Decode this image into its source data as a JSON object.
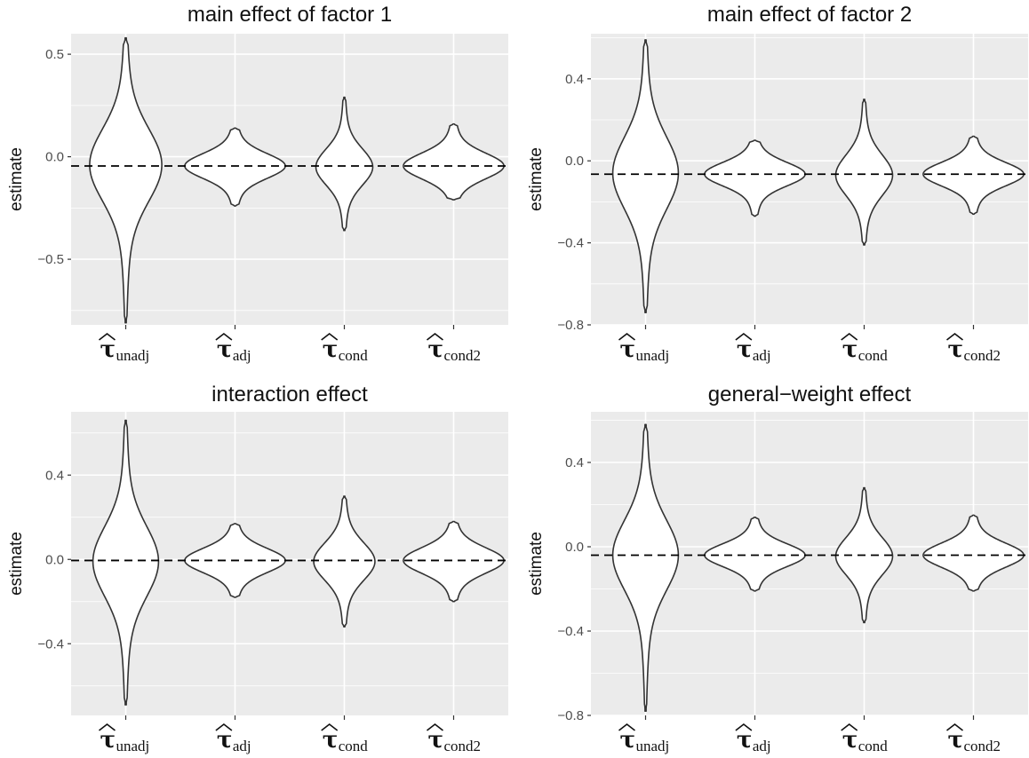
{
  "tick_marker": "−",
  "chart_data": [
    {
      "type": "violin",
      "title": "main effect of factor 1",
      "ylabel": "estimate",
      "xlabel": "",
      "ylim": [
        -0.82,
        0.6
      ],
      "yticks": [
        0.5,
        0.0,
        -0.5
      ],
      "ytick_labels": [
        "0.5",
        "0.0",
        "−0.5"
      ],
      "grid": true,
      "categories": [
        "τ̂_unadj",
        "τ̂_adj",
        "τ̂_cond",
        "τ̂_cond2"
      ],
      "category_parts": [
        {
          "base": "τ",
          "sub": "unadj"
        },
        {
          "base": "τ",
          "sub": "adj"
        },
        {
          "base": "τ",
          "sub": "cond"
        },
        {
          "base": "τ",
          "sub": "cond2"
        }
      ],
      "hline": -0.045,
      "violins": [
        {
          "min": -0.81,
          "max": 0.58,
          "center": -0.04,
          "sd": 0.17,
          "halfwidth": 0.33
        },
        {
          "min": -0.24,
          "max": 0.14,
          "center": -0.045,
          "sd": 0.058,
          "halfwidth": 0.46
        },
        {
          "min": -0.36,
          "max": 0.29,
          "center": -0.05,
          "sd": 0.085,
          "halfwidth": 0.26
        },
        {
          "min": -0.21,
          "max": 0.16,
          "center": -0.045,
          "sd": 0.06,
          "halfwidth": 0.46
        }
      ]
    },
    {
      "type": "violin",
      "title": "main effect of factor 2",
      "ylabel": "estimate",
      "xlabel": "",
      "ylim": [
        -0.8,
        0.62
      ],
      "yticks": [
        0.4,
        0.0,
        -0.4,
        -0.8
      ],
      "ytick_labels": [
        "0.4",
        "0.0",
        "−0.4",
        "−0.8"
      ],
      "grid": true,
      "categories": [
        "τ̂_unadj",
        "τ̂_adj",
        "τ̂_cond",
        "τ̂_cond2"
      ],
      "category_parts": [
        {
          "base": "τ",
          "sub": "unadj"
        },
        {
          "base": "τ",
          "sub": "adj"
        },
        {
          "base": "τ",
          "sub": "cond"
        },
        {
          "base": "τ",
          "sub": "cond2"
        }
      ],
      "hline": -0.065,
      "violins": [
        {
          "min": -0.74,
          "max": 0.59,
          "center": -0.06,
          "sd": 0.17,
          "halfwidth": 0.3
        },
        {
          "min": -0.27,
          "max": 0.1,
          "center": -0.065,
          "sd": 0.055,
          "halfwidth": 0.46
        },
        {
          "min": -0.41,
          "max": 0.3,
          "center": -0.07,
          "sd": 0.095,
          "halfwidth": 0.26
        },
        {
          "min": -0.26,
          "max": 0.12,
          "center": -0.065,
          "sd": 0.055,
          "halfwidth": 0.46
        }
      ]
    },
    {
      "type": "violin",
      "title": "interaction effect",
      "ylabel": "estimate",
      "xlabel": "",
      "ylim": [
        -0.74,
        0.7
      ],
      "yticks": [
        0.4,
        0.0,
        -0.4
      ],
      "ytick_labels": [
        "0.4",
        "0.0",
        "−0.4"
      ],
      "grid": true,
      "categories": [
        "τ̂_unadj",
        "τ̂_adj",
        "τ̂_cond",
        "τ̂_cond2"
      ],
      "category_parts": [
        {
          "base": "τ",
          "sub": "unadj"
        },
        {
          "base": "τ",
          "sub": "adj"
        },
        {
          "base": "τ",
          "sub": "cond"
        },
        {
          "base": "τ",
          "sub": "cond2"
        }
      ],
      "hline": -0.005,
      "violins": [
        {
          "min": -0.69,
          "max": 0.66,
          "center": -0.01,
          "sd": 0.16,
          "halfwidth": 0.3
        },
        {
          "min": -0.18,
          "max": 0.17,
          "center": -0.005,
          "sd": 0.055,
          "halfwidth": 0.46
        },
        {
          "min": -0.32,
          "max": 0.3,
          "center": -0.01,
          "sd": 0.085,
          "halfwidth": 0.28
        },
        {
          "min": -0.2,
          "max": 0.18,
          "center": -0.005,
          "sd": 0.058,
          "halfwidth": 0.46
        }
      ]
    },
    {
      "type": "violin",
      "title": "general−weight effect",
      "ylabel": "estimate",
      "xlabel": "",
      "ylim": [
        -0.8,
        0.64
      ],
      "yticks": [
        0.4,
        0.0,
        -0.4,
        -0.8
      ],
      "ytick_labels": [
        "0.4",
        "0.0",
        "−0.4",
        "−0.8"
      ],
      "grid": true,
      "categories": [
        "τ̂_unadj",
        "τ̂_adj",
        "τ̂_cond",
        "τ̂_cond2"
      ],
      "category_parts": [
        {
          "base": "τ",
          "sub": "unadj"
        },
        {
          "base": "τ",
          "sub": "adj"
        },
        {
          "base": "τ",
          "sub": "cond"
        },
        {
          "base": "τ",
          "sub": "cond2"
        }
      ],
      "hline": -0.04,
      "violins": [
        {
          "min": -0.78,
          "max": 0.58,
          "center": -0.04,
          "sd": 0.16,
          "halfwidth": 0.3
        },
        {
          "min": -0.21,
          "max": 0.14,
          "center": -0.04,
          "sd": 0.052,
          "halfwidth": 0.46
        },
        {
          "min": -0.36,
          "max": 0.28,
          "center": -0.045,
          "sd": 0.085,
          "halfwidth": 0.26
        },
        {
          "min": -0.21,
          "max": 0.15,
          "center": -0.04,
          "sd": 0.055,
          "halfwidth": 0.46
        }
      ]
    }
  ]
}
